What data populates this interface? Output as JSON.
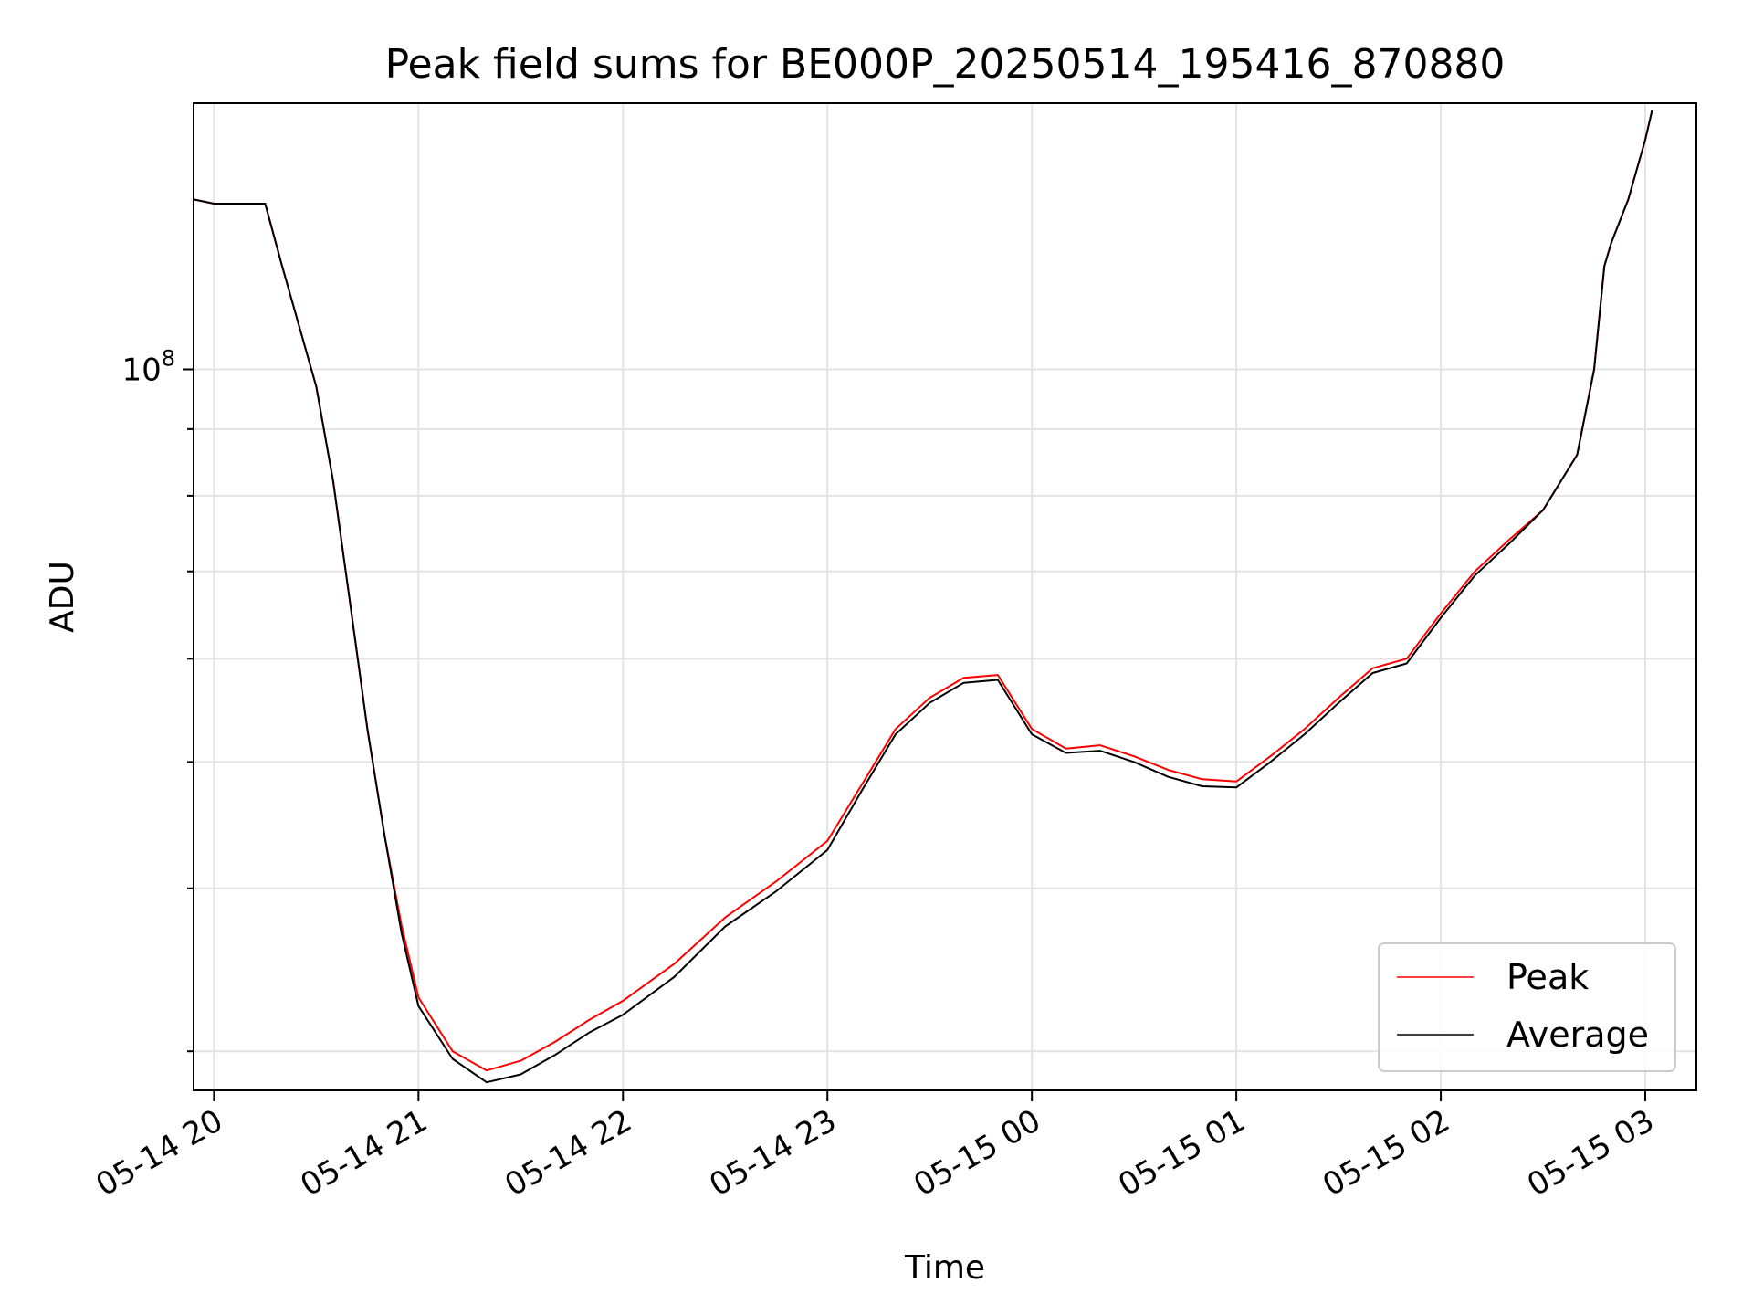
{
  "chart_data": {
    "type": "line",
    "title": "Peak field sums for BE000P_20250514_195416_870880",
    "xlabel": "Time",
    "ylabel": "ADU",
    "yscale": "log",
    "xlim": [
      "2025-05-14 19:54",
      "2025-05-15 03:15"
    ],
    "ylim": [
      28000000,
      160000000
    ],
    "x_ticks": [
      {
        "value": "2025-05-14 20:00",
        "label": "05-14 20"
      },
      {
        "value": "2025-05-14 21:00",
        "label": "05-14 21"
      },
      {
        "value": "2025-05-14 22:00",
        "label": "05-14 22"
      },
      {
        "value": "2025-05-14 23:00",
        "label": "05-14 23"
      },
      {
        "value": "2025-05-15 00:00",
        "label": "05-15 00"
      },
      {
        "value": "2025-05-15 01:00",
        "label": "05-15 01"
      },
      {
        "value": "2025-05-15 02:00",
        "label": "05-15 02"
      },
      {
        "value": "2025-05-15 03:00",
        "label": "05-15 03"
      }
    ],
    "y_major_tick": {
      "value": 100000000,
      "label_base": "10",
      "label_exp": "8"
    },
    "y_minor_ticks": [
      30000000,
      40000000,
      50000000,
      60000000,
      70000000,
      80000000,
      90000000,
      200000000
    ],
    "grid": true,
    "legend_position": "lower-right",
    "series": [
      {
        "name": "Peak",
        "color": "#ff0000",
        "x": [
          "2025-05-14 19:54",
          "2025-05-14 20:00",
          "2025-05-14 20:15",
          "2025-05-14 20:20",
          "2025-05-14 20:30",
          "2025-05-14 20:35",
          "2025-05-14 20:40",
          "2025-05-14 20:45",
          "2025-05-14 20:50",
          "2025-05-14 20:55",
          "2025-05-14 21:00",
          "2025-05-14 21:10",
          "2025-05-14 21:20",
          "2025-05-14 21:30",
          "2025-05-14 21:40",
          "2025-05-14 21:50",
          "2025-05-14 22:00",
          "2025-05-14 22:15",
          "2025-05-14 22:30",
          "2025-05-14 22:45",
          "2025-05-14 23:00",
          "2025-05-14 23:10",
          "2025-05-14 23:20",
          "2025-05-14 23:30",
          "2025-05-14 23:40",
          "2025-05-14 23:50",
          "2025-05-15 00:00",
          "2025-05-15 00:10",
          "2025-05-15 00:20",
          "2025-05-15 00:30",
          "2025-05-15 00:40",
          "2025-05-15 00:50",
          "2025-05-15 01:00",
          "2025-05-15 01:10",
          "2025-05-15 01:20",
          "2025-05-15 01:30",
          "2025-05-15 01:40",
          "2025-05-15 01:50",
          "2025-05-15 02:00",
          "2025-05-15 02:10",
          "2025-05-15 02:20",
          "2025-05-15 02:30",
          "2025-05-15 02:40",
          "2025-05-15 02:45",
          "2025-05-15 02:48",
          "2025-05-15 02:50",
          "2025-05-15 02:55",
          "2025-05-15 03:00",
          "2025-05-15 03:02"
        ],
        "y": [
          135000000,
          134000000,
          134000000,
          120000000,
          97000000,
          82000000,
          66000000,
          53000000,
          44000000,
          37500000,
          33000000,
          30000000,
          29000000,
          29500000,
          30500000,
          31700000,
          32800000,
          35000000,
          38000000,
          40500000,
          43500000,
          48000000,
          53000000,
          56000000,
          58000000,
          58300000,
          53000000,
          51200000,
          51500000,
          50500000,
          49300000,
          48500000,
          48300000,
          50500000,
          53000000,
          56000000,
          59000000,
          60000000,
          65000000,
          70000000,
          74000000,
          78000000,
          86000000,
          100000000,
          120000000,
          125000000,
          135000000,
          150000000,
          158000000
        ]
      },
      {
        "name": "Average",
        "color": "#000000",
        "x": [
          "2025-05-14 19:54",
          "2025-05-14 20:00",
          "2025-05-14 20:15",
          "2025-05-14 20:20",
          "2025-05-14 20:30",
          "2025-05-14 20:35",
          "2025-05-14 20:40",
          "2025-05-14 20:45",
          "2025-05-14 20:50",
          "2025-05-14 20:55",
          "2025-05-14 21:00",
          "2025-05-14 21:10",
          "2025-05-14 21:20",
          "2025-05-14 21:30",
          "2025-05-14 21:40",
          "2025-05-14 21:50",
          "2025-05-14 22:00",
          "2025-05-14 22:15",
          "2025-05-14 22:30",
          "2025-05-14 22:45",
          "2025-05-14 23:00",
          "2025-05-14 23:10",
          "2025-05-14 23:20",
          "2025-05-14 23:30",
          "2025-05-14 23:40",
          "2025-05-14 23:50",
          "2025-05-15 00:00",
          "2025-05-15 00:10",
          "2025-05-15 00:20",
          "2025-05-15 00:30",
          "2025-05-15 00:40",
          "2025-05-15 00:50",
          "2025-05-15 01:00",
          "2025-05-15 01:10",
          "2025-05-15 01:20",
          "2025-05-15 01:30",
          "2025-05-15 01:40",
          "2025-05-15 01:50",
          "2025-05-15 02:00",
          "2025-05-15 02:10",
          "2025-05-15 02:20",
          "2025-05-15 02:30",
          "2025-05-15 02:40",
          "2025-05-15 02:45",
          "2025-05-15 02:48",
          "2025-05-15 02:50",
          "2025-05-15 02:55",
          "2025-05-15 03:00",
          "2025-05-15 03:02"
        ],
        "y": [
          135000000,
          134000000,
          134000000,
          120000000,
          97000000,
          82000000,
          66000000,
          53000000,
          44000000,
          37000000,
          32500000,
          29600000,
          28400000,
          28800000,
          29800000,
          31000000,
          32000000,
          34200000,
          37400000,
          39800000,
          42800000,
          47500000,
          52500000,
          55500000,
          57500000,
          57800000,
          52500000,
          50800000,
          51000000,
          50000000,
          48700000,
          47900000,
          47800000,
          50000000,
          52500000,
          55500000,
          58500000,
          59500000,
          64500000,
          69500000,
          73500000,
          78000000,
          86000000,
          100000000,
          120000000,
          125000000,
          135000000,
          150000000,
          158000000
        ]
      }
    ]
  }
}
